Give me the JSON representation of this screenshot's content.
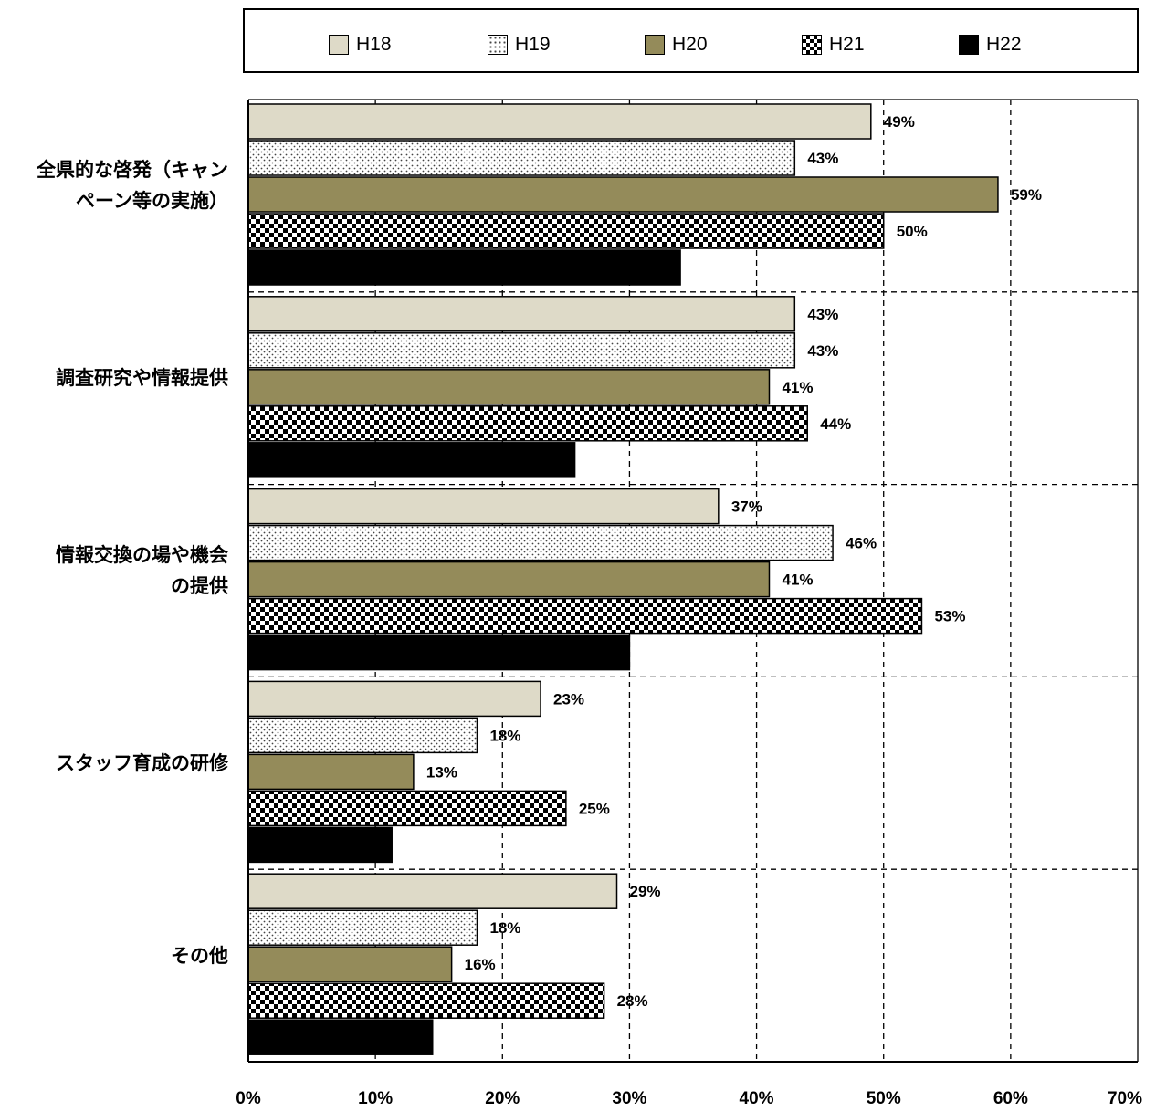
{
  "chart_data": {
    "type": "bar",
    "orientation": "horizontal",
    "categories": [
      "全県的な啓発（キャンペーン等の実施）",
      "調査研究や情報提供",
      "情報交換の場や機会の提供",
      "スタッフ育成の研修",
      "その他"
    ],
    "category_lines": [
      [
        "全県的な啓発（キャン",
        "ペーン等の実施）"
      ],
      [
        "調査研究や情報提供"
      ],
      [
        "情報交換の場や機会",
        "の提供"
      ],
      [
        "スタッフ育成の研修"
      ],
      [
        "その他"
      ]
    ],
    "series": [
      {
        "name": "H18",
        "values": [
          49,
          43,
          37,
          23,
          29
        ],
        "labels": [
          "49%",
          "43%",
          "37%",
          "23%",
          "29%"
        ],
        "pattern": "solid",
        "color": "#dedac8"
      },
      {
        "name": "H19",
        "values": [
          43,
          43,
          46,
          18,
          18
        ],
        "labels": [
          "43%",
          "43%",
          "46%",
          "18%",
          "18%"
        ],
        "pattern": "dots",
        "color": "#ffffff"
      },
      {
        "name": "H20",
        "values": [
          59,
          41,
          41,
          13,
          16
        ],
        "labels": [
          "59%",
          "41%",
          "41%",
          "13%",
          "16%"
        ],
        "pattern": "solid",
        "color": "#948b5a"
      },
      {
        "name": "H21",
        "values": [
          50,
          44,
          53,
          25,
          28
        ],
        "labels": [
          "50%",
          "44%",
          "53%",
          "25%",
          "28%"
        ],
        "pattern": "checker",
        "color": "#000000"
      },
      {
        "name": "H22",
        "values": [
          34,
          25.7,
          30,
          11.3,
          14.5
        ],
        "labels": [
          "",
          "",
          "",
          "",
          ""
        ],
        "pattern": "solid",
        "color": "#000000"
      }
    ],
    "xlim": [
      0,
      70
    ],
    "x_ticks": [
      "0%",
      "10%",
      "20%",
      "30%",
      "40%",
      "50%",
      "60%",
      "70%"
    ],
    "grid": true,
    "legend_position": "top"
  }
}
